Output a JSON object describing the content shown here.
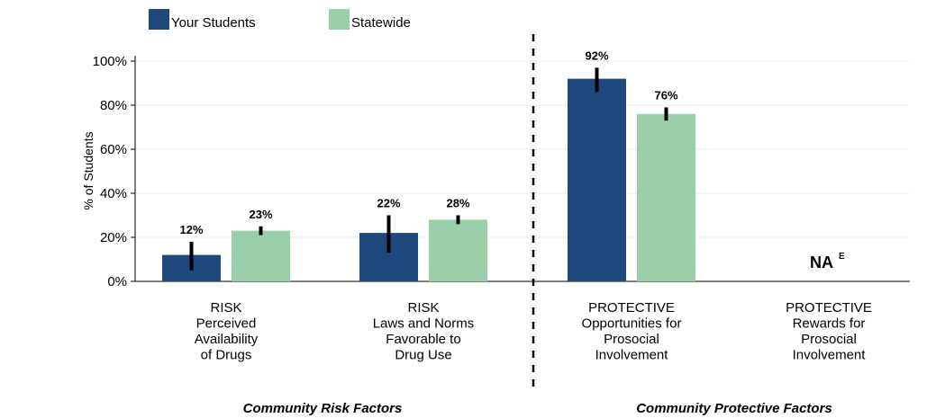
{
  "chart_data": {
    "type": "bar",
    "ylabel": "% of Students",
    "ylim": [
      0,
      100
    ],
    "yticks": [
      "0%",
      "20%",
      "40%",
      "60%",
      "80%",
      "100%"
    ],
    "legend": {
      "placement": "top-left"
    },
    "categories": [
      [
        "RISK",
        "Perceived",
        "Availability",
        "of Drugs"
      ],
      [
        "RISK",
        "Laws and Norms",
        "Favorable to",
        "Drug Use"
      ],
      [
        "PROTECTIVE",
        "Opportunities for",
        "Prosocial",
        "Involvement"
      ],
      [
        "PROTECTIVE",
        "Rewards for",
        "Prosocial",
        "Involvement"
      ]
    ],
    "series": [
      {
        "name": "Your Students",
        "color": "#1f497d",
        "values": [
          12,
          22,
          92,
          null
        ],
        "labels": [
          "12%",
          "22%",
          "92%",
          ""
        ],
        "error_low": [
          5,
          13,
          86,
          null
        ],
        "error_high": [
          18,
          30,
          97,
          null
        ]
      },
      {
        "name": "Statewide",
        "color": "#9bcfa9",
        "values": [
          23,
          28,
          76,
          null
        ],
        "labels": [
          "23%",
          "28%",
          "76%",
          ""
        ],
        "error_low": [
          21,
          26,
          73,
          null
        ],
        "error_high": [
          25,
          30,
          79,
          null
        ]
      }
    ],
    "annotations": [
      {
        "category_index": 3,
        "text": "NA",
        "superscript": "E"
      }
    ],
    "groups": [
      {
        "label": "Community Risk Factors",
        "categories": [
          0,
          1
        ]
      },
      {
        "label": "Community Protective Factors",
        "categories": [
          2,
          3
        ]
      }
    ],
    "grid": true
  }
}
